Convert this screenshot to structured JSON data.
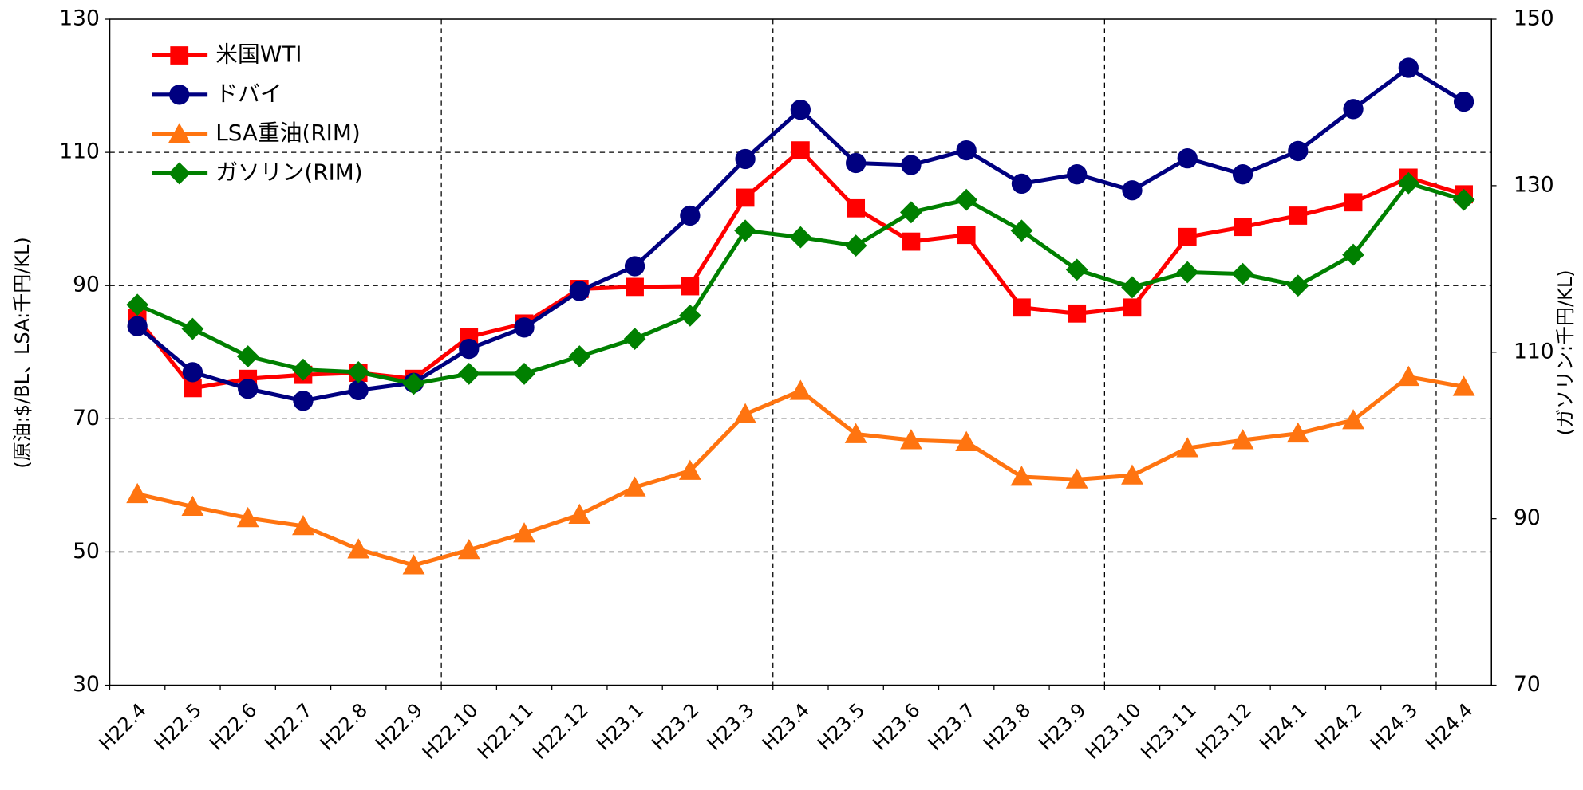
{
  "chart_data": {
    "type": "line",
    "ylabel": "(原油:$/BL、LSA:千円/KL)",
    "y2label": "(ガソリン:千円/KL)",
    "categories": [
      "H22.4",
      "H22.5",
      "H22.6",
      "H22.7",
      "H22.8",
      "H22.9",
      "H22.10",
      "H22.11",
      "H22.12",
      "H23.1",
      "H23.2",
      "H23.3",
      "H23.4",
      "H23.5",
      "H23.6",
      "H23.7",
      "H23.8",
      "H23.9",
      "H23.10",
      "H23.11",
      "H23.12",
      "H24.1",
      "H24.2",
      "H24.3",
      "H24.4"
    ],
    "ylim": [
      30,
      130
    ],
    "yticks": [
      30,
      50,
      70,
      90,
      110,
      130
    ],
    "y2lim": [
      70,
      150
    ],
    "y2ticks": [
      70,
      90,
      110,
      130,
      150
    ],
    "grid": true,
    "legend": "upper left",
    "series": [
      {
        "name": "米国WTI",
        "color": "#ff0000",
        "marker": "square",
        "values": [
          85.1,
          74.6,
          76.0,
          76.6,
          76.9,
          76.0,
          82.3,
          84.3,
          89.5,
          89.8,
          89.9,
          103.2,
          110.3,
          101.6,
          96.6,
          97.6,
          86.7,
          85.8,
          86.7,
          97.3,
          98.8,
          100.5,
          102.5,
          106.2,
          103.7
        ]
      },
      {
        "name": "ドバイ",
        "color": "#000080",
        "marker": "circle",
        "values": [
          83.9,
          77.0,
          74.5,
          72.7,
          74.3,
          75.4,
          80.5,
          83.7,
          89.2,
          92.9,
          100.5,
          109.0,
          116.4,
          108.4,
          108.1,
          110.3,
          105.3,
          106.7,
          104.3,
          109.1,
          106.7,
          110.2,
          116.5,
          122.7,
          117.6
        ]
      },
      {
        "name": "LSA重油(RIM)",
        "color": "#ff7410",
        "marker": "triangle",
        "values": [
          58.7,
          56.8,
          55.1,
          53.9,
          50.4,
          48.0,
          50.3,
          52.8,
          55.6,
          59.7,
          62.2,
          70.7,
          74.2,
          67.7,
          66.8,
          66.5,
          61.3,
          60.9,
          61.5,
          65.6,
          66.8,
          67.8,
          69.8,
          76.3,
          74.8
        ]
      },
      {
        "name": "ガソリン(RIM)",
        "color": "#008000",
        "marker": "diamond",
        "axis": "y2",
        "values": [
          115.7,
          112.8,
          109.5,
          107.9,
          107.6,
          106.2,
          107.4,
          107.4,
          109.5,
          111.6,
          114.4,
          124.6,
          123.8,
          122.8,
          126.8,
          128.3,
          124.6,
          119.9,
          117.8,
          119.6,
          119.4,
          118.0,
          121.7,
          130.3,
          128.3
        ]
      }
    ]
  }
}
